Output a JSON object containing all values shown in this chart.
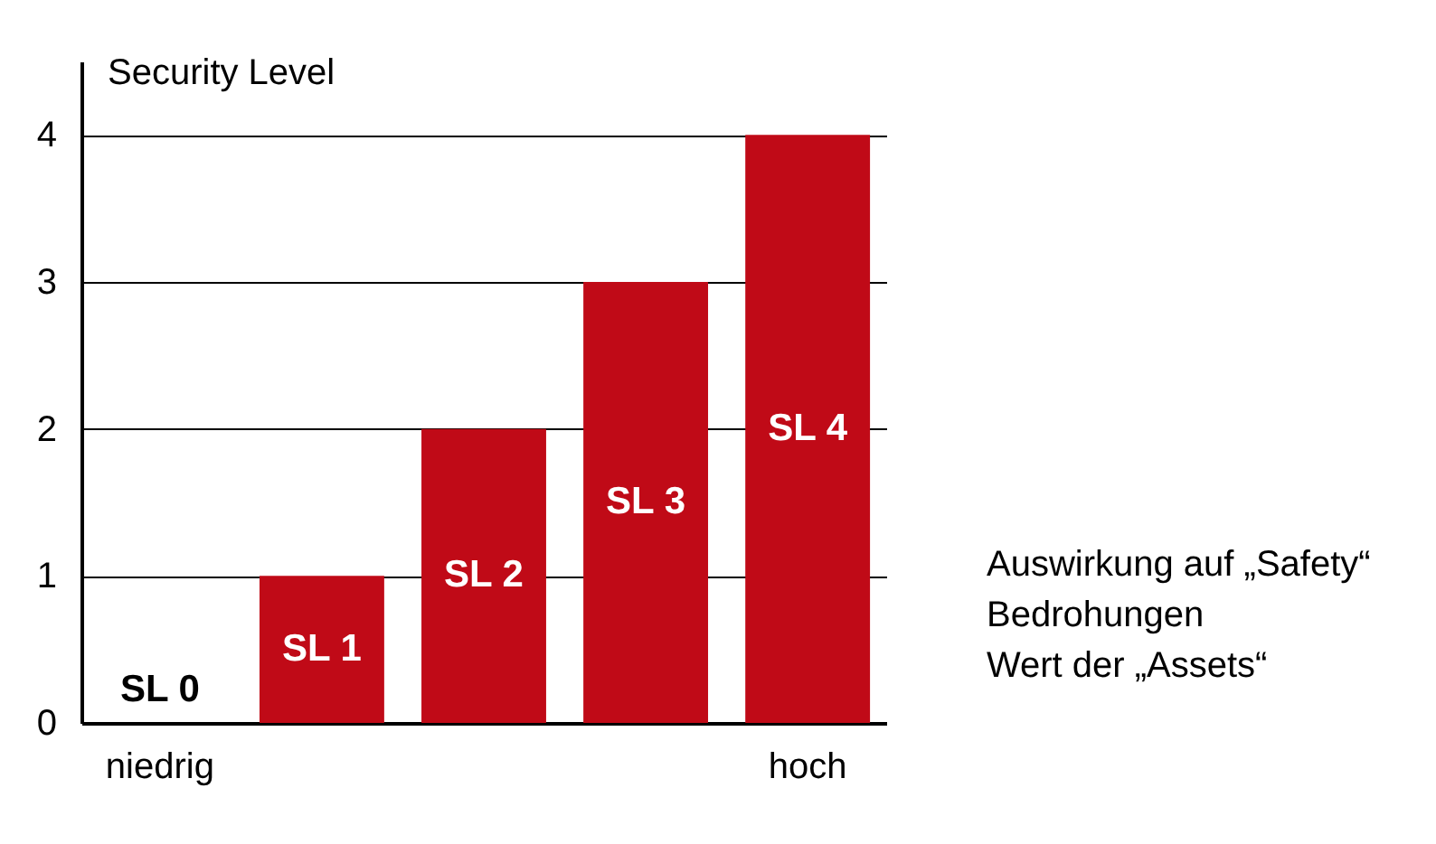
{
  "chart_data": {
    "type": "bar",
    "ylabel": "Security Level",
    "xlabel": "Auswirkung auf „Safety“\nBedrohungen\nWert der „Assets“",
    "categories": [
      "niedrig",
      null,
      null,
      null,
      "hoch"
    ],
    "values": [
      0,
      1,
      2,
      3,
      4
    ],
    "value_labels": [
      "SL 0",
      "SL 1",
      "SL 2",
      "SL 3",
      "SL 4"
    ],
    "color": "#c00a17",
    "ylim": [
      0,
      4.5
    ],
    "yticks": [
      0,
      1,
      2,
      3,
      4
    ],
    "grid": "y"
  }
}
